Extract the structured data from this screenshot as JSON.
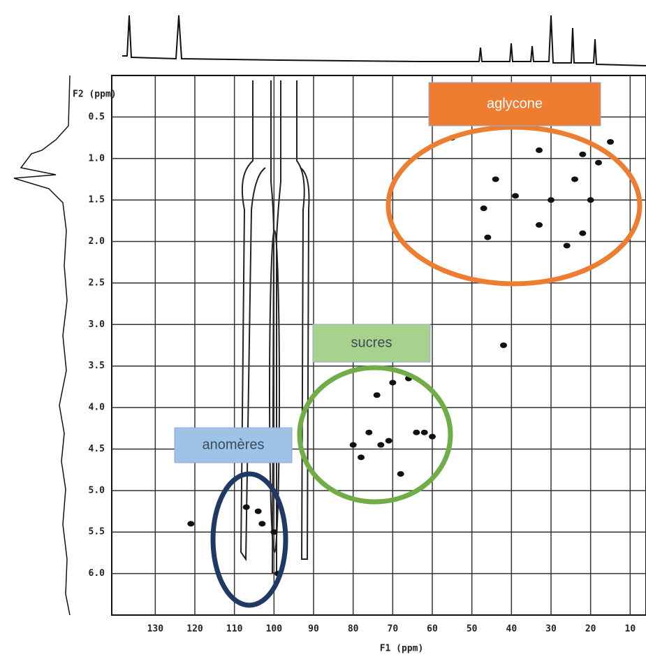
{
  "chart_data": {
    "type": "scatter",
    "x_label": "F1 (ppm)",
    "y_label": "F2 (ppm)",
    "x": [
      55,
      47,
      46,
      44,
      39,
      33,
      33,
      30,
      26,
      24,
      22,
      22,
      20,
      18,
      15,
      78,
      76,
      74,
      73,
      71,
      70,
      66,
      64,
      62,
      60,
      80,
      68,
      42,
      107,
      104,
      103,
      100,
      99,
      121
    ],
    "values": [
      0.75,
      1.6,
      1.95,
      1.25,
      1.45,
      0.9,
      1.8,
      1.5,
      2.05,
      1.25,
      1.9,
      0.95,
      1.5,
      1.05,
      0.8,
      4.6,
      4.3,
      3.85,
      4.45,
      4.4,
      3.7,
      3.65,
      4.3,
      4.3,
      4.35,
      4.45,
      4.8,
      3.25,
      5.2,
      5.25,
      5.4,
      5.5,
      6.0,
      5.4
    ],
    "color": "#111111",
    "xlim": [
      141,
      6
    ],
    "ylim": [
      0,
      6.5
    ],
    "xticks": [
      130,
      120,
      110,
      100,
      90,
      80,
      70,
      60,
      50,
      40,
      30,
      20,
      10
    ],
    "yticks": [
      {
        "value": 0.5,
        "label": "0.5"
      },
      {
        "value": 1,
        "label": "1.0"
      },
      {
        "value": 1.5,
        "label": "1.5"
      },
      {
        "value": 2,
        "label": "2.0"
      },
      {
        "value": 2.5,
        "label": "2.5"
      },
      {
        "value": 3,
        "label": "3.0"
      },
      {
        "value": 3.5,
        "label": "3.5"
      },
      {
        "value": 4,
        "label": "4.0"
      },
      {
        "value": 4.5,
        "label": "4.5"
      },
      {
        "value": 5,
        "label": "5.0"
      },
      {
        "value": 5.5,
        "label": "5.5"
      },
      {
        "value": 6,
        "label": "6.0"
      }
    ],
    "grid": true,
    "annotations": [
      {
        "text": "aglycone",
        "color": "#ed7d31",
        "edge": "#ed7d31"
      },
      {
        "text": "sucres",
        "color": "#a9d18e",
        "edge": "#70ad47"
      },
      {
        "text": "anomères",
        "color": "#9dc3e6",
        "edge": "#1f3864"
      }
    ]
  }
}
